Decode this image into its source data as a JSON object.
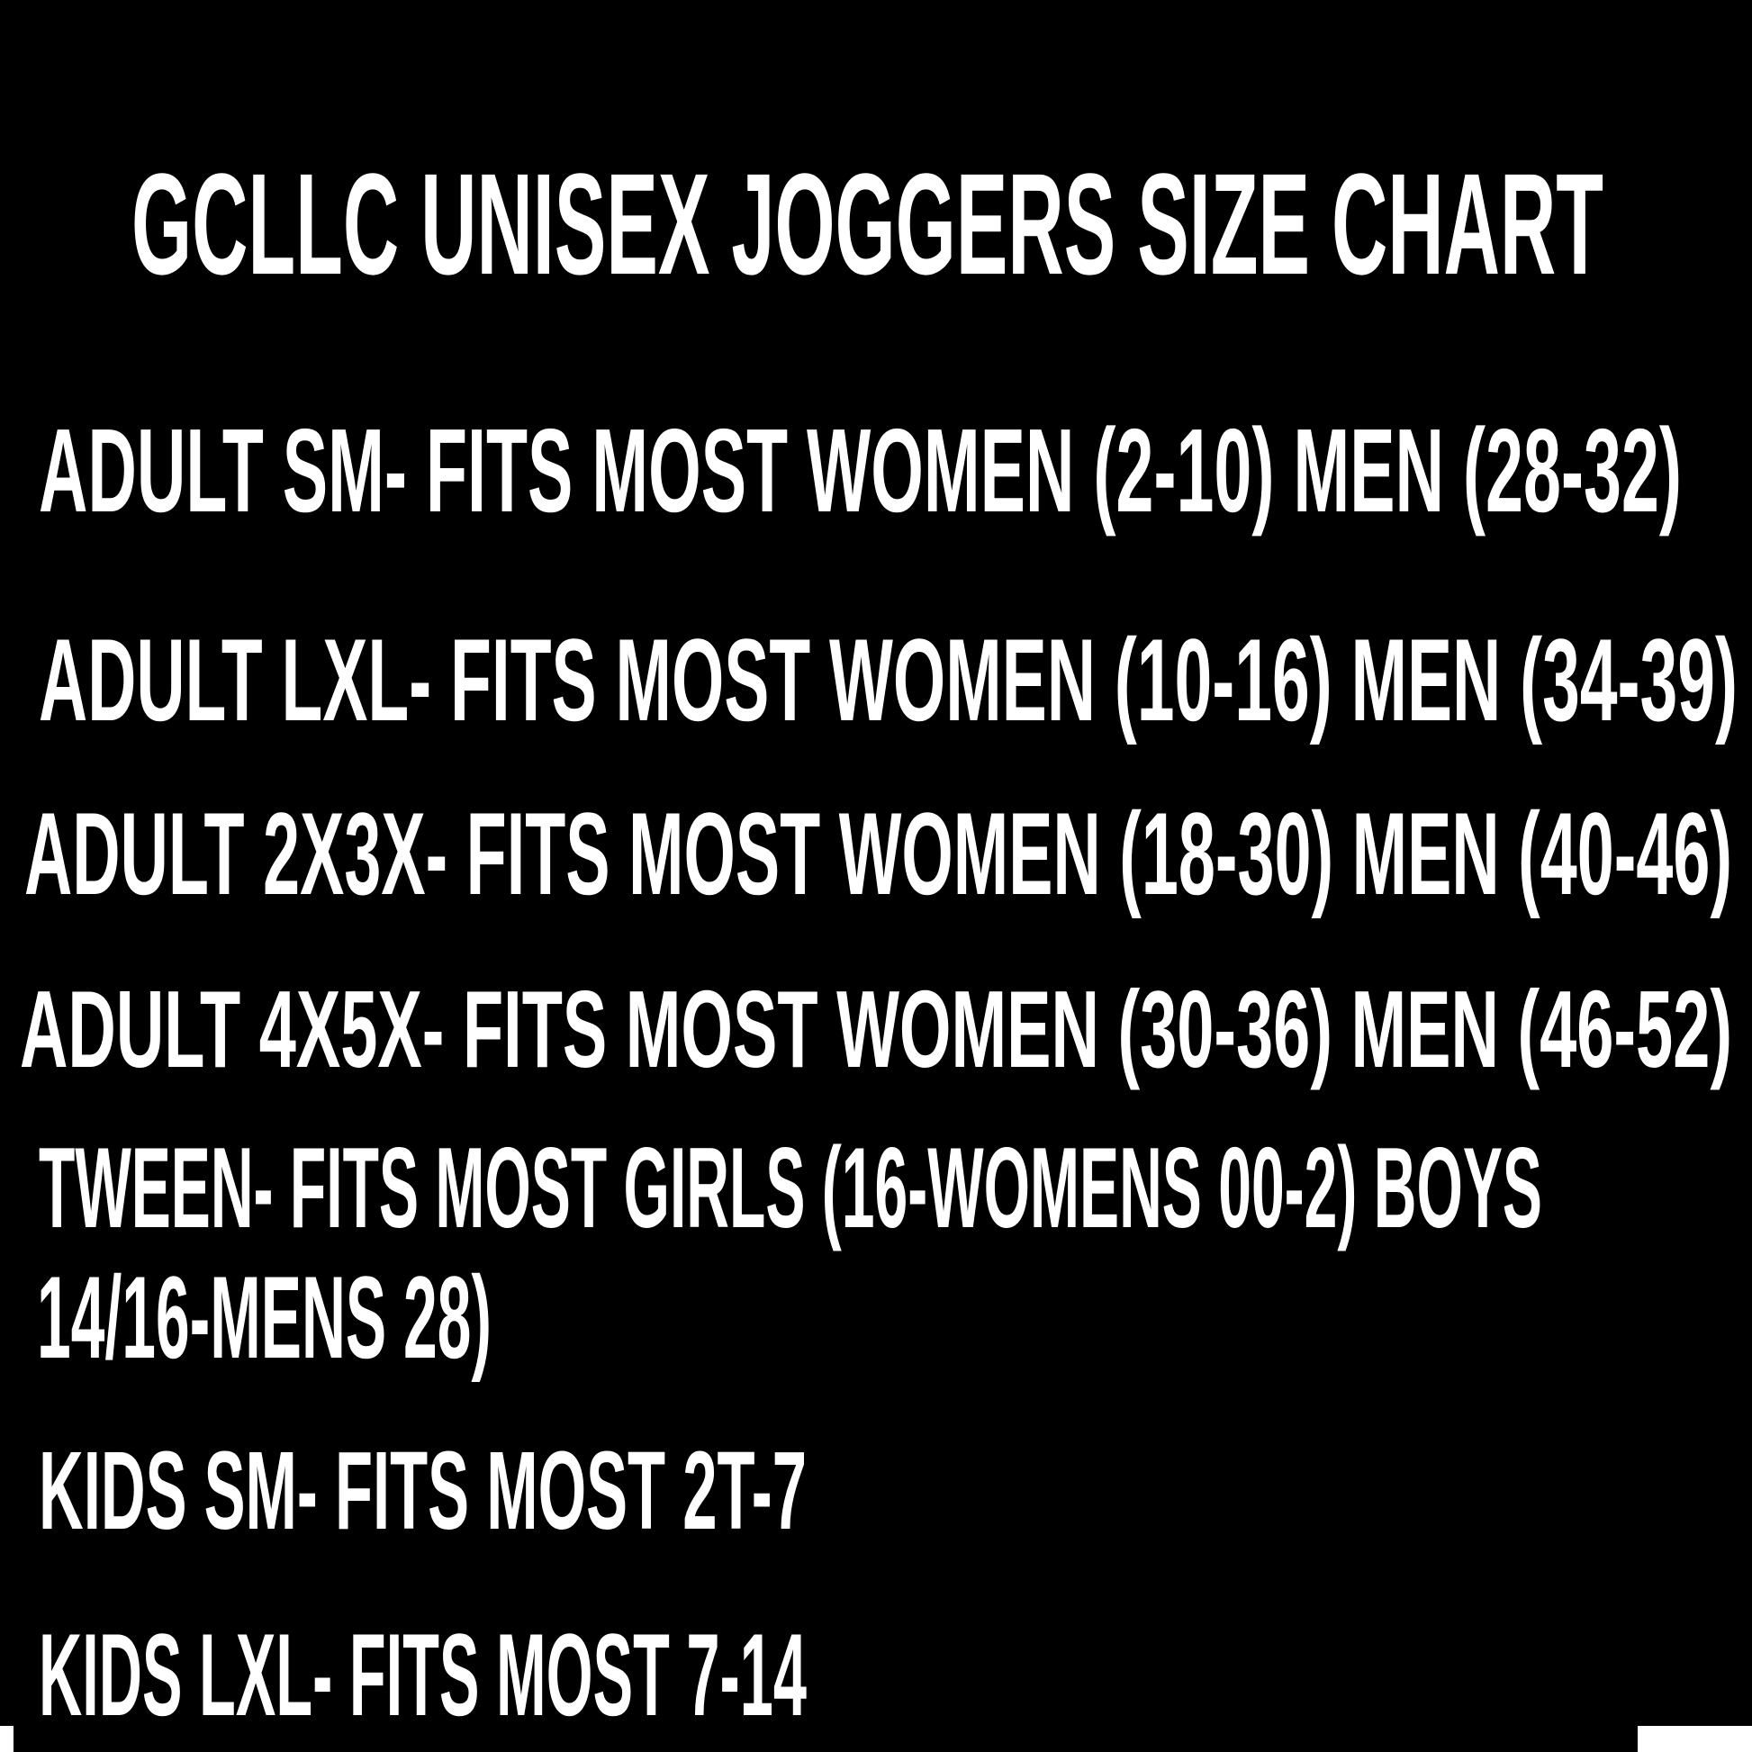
{
  "title": "GCLLC UNISEX JOGGERS SIZE CHART",
  "sizes": [
    "ADULT SM- FITS MOST WOMEN (2-10) MEN (28-32)",
    "ADULT LXL- FITS MOST WOMEN (10-16) MEN (34-39)",
    "ADULT 2X3X- FITS MOST WOMEN (18-30) MEN (40-46)",
    "ADULT 4X5X- FITS MOST WOMEN (30-36) MEN (46-52)",
    "TWEEN- FITS MOST GIRLS (16-WOMENS 00-2) BOYS",
    "14/16-MENS 28)",
    "KIDS SM- FITS MOST 2T-7",
    "KIDS LXL- FITS MOST 7-14"
  ],
  "colors": {
    "background": "#000000",
    "text": "#ffffff"
  }
}
